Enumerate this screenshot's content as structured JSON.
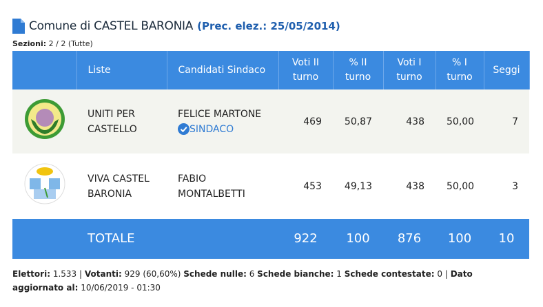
{
  "header": {
    "title": "Comune di CASTEL BARONIA",
    "subtitle": "(Prec. elez.: 25/05/2014)"
  },
  "sections": {
    "label": "Sezioni:",
    "value": "2 / 2 (Tutte)"
  },
  "table": {
    "columns": [
      "Liste",
      "Candidati Sindaco",
      "Voti II turno",
      "% II turno",
      "Voti I turno",
      "% I turno",
      "Seggi"
    ],
    "rows": [
      {
        "list": "UNITI PER CASTELLO",
        "candidate": "FELICE MARTONE",
        "badge": "SINDACO",
        "values": [
          "469",
          "50,87",
          "438",
          "50,00",
          "7"
        ]
      },
      {
        "list": "VIVA CASTEL BARONIA",
        "candidate": "FABIO MONTALBETTI",
        "values": [
          "453",
          "49,13",
          "438",
          "50,00",
          "3"
        ]
      }
    ],
    "total": {
      "label": "TOTALE",
      "values": [
        "922",
        "100",
        "876",
        "100",
        "10"
      ]
    }
  },
  "footer": [
    {
      "label": "Elettori:",
      "value": "1.533 |"
    },
    {
      "label": "Votanti:",
      "value": "929 (60,60%)"
    },
    {
      "label": "Schede nulle:",
      "value": "6"
    },
    {
      "label": "Schede bianche:",
      "value": "1"
    },
    {
      "label": "Schede contestate:",
      "value": "0 |"
    },
    {
      "label": "Dato aggiornato al:",
      "value": "10/06/2019 - 01:30"
    }
  ]
}
